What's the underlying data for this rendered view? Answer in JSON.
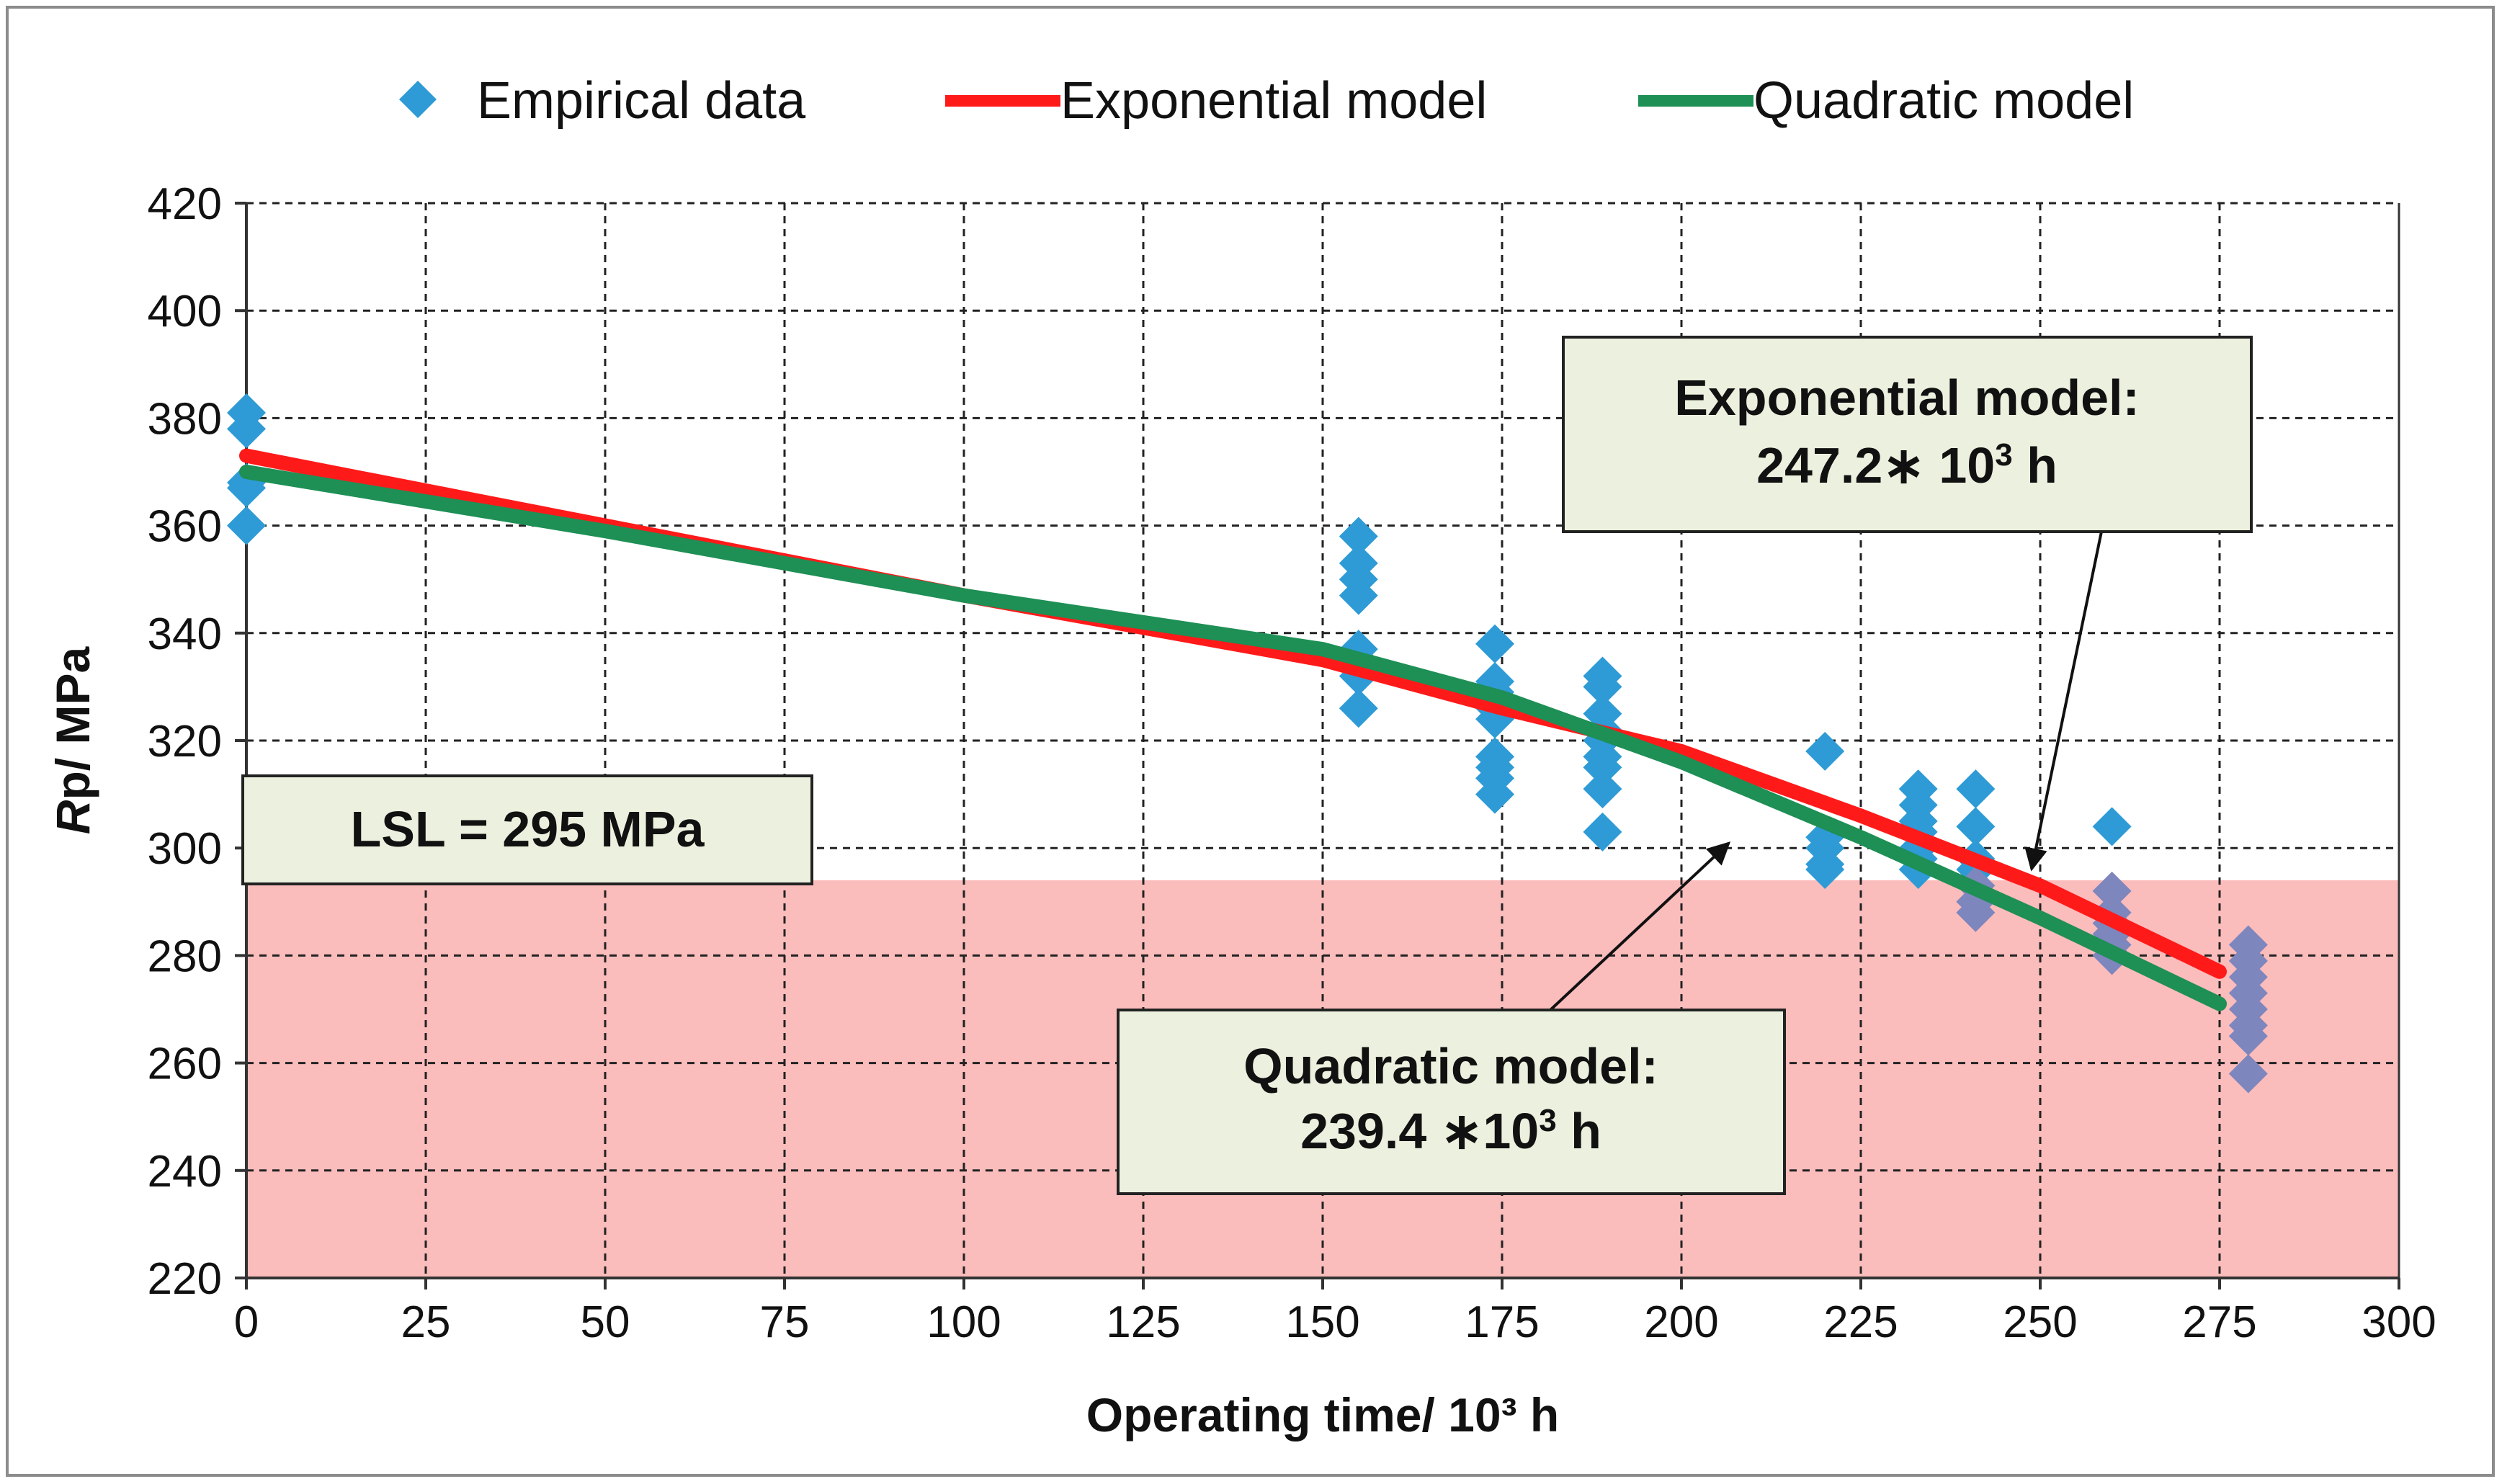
{
  "chart_data": {
    "type": "scatter",
    "xlabel": "Operating time/ 10³ h",
    "ylabel_italic": "R",
    "ylabel_rest": "p/ MPa",
    "xlim": [
      0,
      300
    ],
    "ylim": [
      220,
      420
    ],
    "xticks": [
      0,
      25,
      50,
      75,
      100,
      125,
      150,
      175,
      200,
      225,
      250,
      275,
      300
    ],
    "yticks": [
      220,
      240,
      260,
      280,
      300,
      320,
      340,
      360,
      380,
      400,
      420
    ],
    "grid": true,
    "legend_position": "top",
    "legend": [
      {
        "label": "Empirical data",
        "marker": "diamond",
        "color": "#2e9bd6"
      },
      {
        "label": "Exponential model",
        "marker": "line",
        "color": "#ff1a1a"
      },
      {
        "label": "Quadratic model",
        "marker": "line",
        "color": "#1e8f55"
      }
    ],
    "series": [
      {
        "name": "Empirical data",
        "kind": "scatter",
        "color": "#2e9bd6",
        "points": [
          [
            0,
            381
          ],
          [
            0,
            378
          ],
          [
            0,
            368
          ],
          [
            0,
            367
          ],
          [
            0,
            360
          ],
          [
            155,
            358
          ],
          [
            155,
            353
          ],
          [
            155,
            350
          ],
          [
            155,
            347
          ],
          [
            155,
            337
          ],
          [
            155,
            335
          ],
          [
            155,
            332
          ],
          [
            155,
            326
          ],
          [
            174,
            338
          ],
          [
            174,
            331
          ],
          [
            174,
            329
          ],
          [
            174,
            326
          ],
          [
            174,
            324
          ],
          [
            174,
            317
          ],
          [
            174,
            315
          ],
          [
            174,
            313
          ],
          [
            174,
            310
          ],
          [
            189,
            332
          ],
          [
            189,
            330
          ],
          [
            189,
            325
          ],
          [
            189,
            322
          ],
          [
            189,
            320
          ],
          [
            189,
            317
          ],
          [
            189,
            315
          ],
          [
            189,
            311
          ],
          [
            189,
            303
          ],
          [
            220,
            318
          ],
          [
            220,
            302
          ],
          [
            220,
            300
          ],
          [
            220,
            297
          ],
          [
            220,
            296
          ],
          [
            233,
            311
          ],
          [
            233,
            308
          ],
          [
            233,
            305
          ],
          [
            233,
            303
          ],
          [
            233,
            300
          ],
          [
            233,
            298
          ],
          [
            233,
            296
          ],
          [
            241,
            311
          ],
          [
            241,
            304
          ],
          [
            241,
            298
          ],
          [
            241,
            296
          ],
          [
            241,
            293
          ],
          [
            241,
            290
          ],
          [
            241,
            288
          ],
          [
            260,
            304
          ],
          [
            260,
            292
          ],
          [
            260,
            288
          ],
          [
            260,
            286
          ],
          [
            260,
            284
          ],
          [
            260,
            282
          ],
          [
            260,
            280
          ],
          [
            279,
            282
          ],
          [
            279,
            279
          ],
          [
            279,
            276
          ],
          [
            279,
            273
          ],
          [
            279,
            270
          ],
          [
            279,
            267
          ],
          [
            279,
            265
          ],
          [
            279,
            258
          ]
        ]
      },
      {
        "name": "Exponential model",
        "kind": "line",
        "color": "#ff1a1a",
        "points": [
          [
            0,
            373
          ],
          [
            50,
            360
          ],
          [
            100,
            347
          ],
          [
            125,
            341
          ],
          [
            150,
            335
          ],
          [
            175,
            326
          ],
          [
            200,
            318
          ],
          [
            225,
            306
          ],
          [
            250,
            293
          ],
          [
            275,
            277
          ]
        ]
      },
      {
        "name": "Quadratic model",
        "kind": "line",
        "color": "#1e8f55",
        "points": [
          [
            0,
            370
          ],
          [
            50,
            359
          ],
          [
            100,
            347
          ],
          [
            125,
            342
          ],
          [
            150,
            337
          ],
          [
            175,
            328
          ],
          [
            200,
            316
          ],
          [
            225,
            302
          ],
          [
            250,
            287
          ],
          [
            275,
            271
          ]
        ]
      }
    ],
    "lsl_region": {
      "y_max": 294,
      "color": "#fbbcbc"
    },
    "annotations": {
      "lsl": "LSL = 295 MPa",
      "exp_line1": "Exponential model:",
      "exp_line2_prefix": "247.2∗ 10",
      "exp_line2_sup": "3",
      "exp_line2_suffix": " h",
      "quad_line1": "Quadratic model:",
      "quad_line2_prefix": "239.4 ∗10",
      "quad_line2_sup": "3",
      "quad_line2_suffix": " h",
      "exp_arrow_target": [
        248,
        295
      ],
      "quad_arrow_target": [
        206,
        302
      ]
    }
  }
}
